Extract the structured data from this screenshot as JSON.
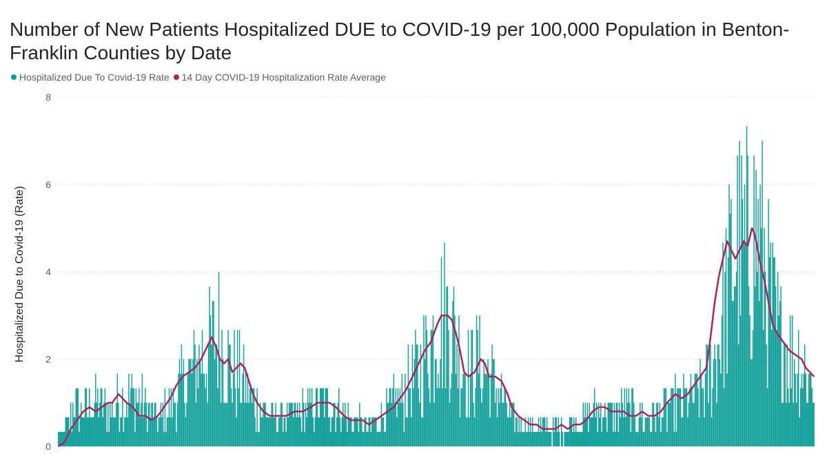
{
  "title": "Number of New Patients Hospitalized DUE to COVID-19 per 100,000 Population in Benton-Franklin Counties by Date",
  "legend": [
    {
      "label": "Hospitalized Due To Covid-19 Rate",
      "color": "#0f9e99"
    },
    {
      "label": "14 Day COVID-19 Hospitalization Rate Average",
      "color": "#a8245f"
    }
  ],
  "chart_data": {
    "type": "bar",
    "title": "Number of New Patients Hospitalized DUE to COVID-19 per 100,000 Population in Benton-Franklin Counties by Date",
    "ylabel": "Hospitalized Due to Covid-19 (Rate)",
    "xlabel": "",
    "ylim": [
      0,
      8
    ],
    "yticks": [
      "0",
      "2",
      "4",
      "6",
      "8"
    ],
    "grid": true,
    "legend_position": "top-left",
    "series": [
      {
        "name": "Hospitalized Due To Covid-19 Rate",
        "type": "bar",
        "color": "#0f9e99",
        "anchors": [
          [
            0,
            0.3
          ],
          [
            5,
            0.3
          ],
          [
            10,
            0.5
          ],
          [
            16,
            1.0
          ],
          [
            22,
            0.8
          ],
          [
            28,
            0.9
          ],
          [
            36,
            1.0
          ],
          [
            44,
            0.9
          ],
          [
            52,
            0.8
          ],
          [
            58,
            1.0
          ],
          [
            64,
            1.1
          ],
          [
            72,
            1.2
          ],
          [
            80,
            1.0
          ],
          [
            88,
            0.8
          ],
          [
            96,
            0.6
          ],
          [
            104,
            0.8
          ],
          [
            112,
            1.1
          ],
          [
            120,
            1.4
          ],
          [
            128,
            1.6
          ],
          [
            136,
            2.0
          ],
          [
            144,
            2.2
          ],
          [
            150,
            2.4
          ],
          [
            156,
            2.6
          ],
          [
            162,
            2.0
          ],
          [
            168,
            1.8
          ],
          [
            174,
            1.7
          ],
          [
            180,
            1.4
          ],
          [
            186,
            1.1
          ],
          [
            192,
            0.9
          ],
          [
            198,
            0.8
          ],
          [
            206,
            0.7
          ],
          [
            214,
            0.7
          ],
          [
            222,
            0.7
          ],
          [
            230,
            0.7
          ],
          [
            238,
            0.8
          ],
          [
            246,
            0.9
          ],
          [
            254,
            1.0
          ],
          [
            262,
            1.0
          ],
          [
            270,
            0.9
          ],
          [
            278,
            0.7
          ],
          [
            286,
            0.6
          ],
          [
            294,
            0.5
          ],
          [
            302,
            0.5
          ],
          [
            310,
            0.6
          ],
          [
            318,
            0.8
          ],
          [
            326,
            1.0
          ],
          [
            334,
            1.2
          ],
          [
            342,
            1.5
          ],
          [
            350,
            1.8
          ],
          [
            356,
            2.2
          ],
          [
            362,
            2.5
          ],
          [
            368,
            2.9
          ],
          [
            374,
            3.0
          ],
          [
            380,
            2.8
          ],
          [
            386,
            2.3
          ],
          [
            392,
            1.8
          ],
          [
            398,
            1.7
          ],
          [
            404,
            2.0
          ],
          [
            410,
            1.8
          ],
          [
            416,
            1.6
          ],
          [
            422,
            1.4
          ],
          [
            428,
            1.2
          ],
          [
            434,
            0.8
          ],
          [
            440,
            0.6
          ],
          [
            448,
            0.5
          ],
          [
            456,
            0.5
          ],
          [
            464,
            0.4
          ],
          [
            472,
            0.4
          ],
          [
            480,
            0.4
          ],
          [
            488,
            0.4
          ],
          [
            496,
            0.5
          ],
          [
            504,
            0.6
          ],
          [
            512,
            0.7
          ],
          [
            520,
            0.8
          ],
          [
            528,
            0.8
          ],
          [
            536,
            0.8
          ],
          [
            544,
            0.8
          ],
          [
            552,
            0.8
          ],
          [
            560,
            0.7
          ],
          [
            568,
            0.7
          ],
          [
            576,
            0.7
          ],
          [
            584,
            0.8
          ],
          [
            592,
            0.9
          ],
          [
            600,
            1.0
          ],
          [
            606,
            1.0
          ],
          [
            612,
            1.1
          ],
          [
            618,
            1.2
          ],
          [
            624,
            1.4
          ],
          [
            630,
            1.7
          ],
          [
            636,
            2.2
          ],
          [
            642,
            3.0
          ],
          [
            648,
            3.8
          ],
          [
            654,
            4.6
          ],
          [
            660,
            4.4
          ],
          [
            666,
            4.5
          ],
          [
            672,
            4.9
          ],
          [
            678,
            4.7
          ],
          [
            684,
            3.8
          ],
          [
            690,
            3.0
          ],
          [
            696,
            2.5
          ],
          [
            702,
            2.3
          ],
          [
            708,
            2.1
          ],
          [
            714,
            2.0
          ],
          [
            720,
            1.8
          ],
          [
            726,
            1.6
          ],
          [
            730,
            1.5
          ]
        ]
      },
      {
        "name": "14 Day COVID-19 Hospitalization Rate Average",
        "type": "line",
        "color": "#a8245f",
        "anchors": [
          [
            0,
            0.0
          ],
          [
            6,
            0.1
          ],
          [
            12,
            0.4
          ],
          [
            18,
            0.6
          ],
          [
            24,
            0.8
          ],
          [
            30,
            0.9
          ],
          [
            36,
            0.8
          ],
          [
            42,
            0.9
          ],
          [
            48,
            1.0
          ],
          [
            52,
            1.0
          ],
          [
            58,
            1.2
          ],
          [
            62,
            1.1
          ],
          [
            66,
            1.0
          ],
          [
            72,
            0.9
          ],
          [
            78,
            0.7
          ],
          [
            84,
            0.7
          ],
          [
            90,
            0.6
          ],
          [
            96,
            0.7
          ],
          [
            102,
            0.9
          ],
          [
            108,
            1.1
          ],
          [
            114,
            1.4
          ],
          [
            120,
            1.6
          ],
          [
            126,
            1.7
          ],
          [
            132,
            1.8
          ],
          [
            138,
            2.0
          ],
          [
            144,
            2.3
          ],
          [
            148,
            2.5
          ],
          [
            152,
            2.3
          ],
          [
            156,
            2.0
          ],
          [
            160,
            1.9
          ],
          [
            164,
            2.0
          ],
          [
            168,
            1.7
          ],
          [
            172,
            1.8
          ],
          [
            176,
            1.9
          ],
          [
            180,
            1.8
          ],
          [
            184,
            1.5
          ],
          [
            188,
            1.2
          ],
          [
            192,
            1.0
          ],
          [
            198,
            0.8
          ],
          [
            204,
            0.7
          ],
          [
            212,
            0.7
          ],
          [
            220,
            0.7
          ],
          [
            228,
            0.8
          ],
          [
            236,
            0.8
          ],
          [
            244,
            0.9
          ],
          [
            250,
            1.0
          ],
          [
            256,
            1.0
          ],
          [
            262,
            1.0
          ],
          [
            268,
            0.9
          ],
          [
            276,
            0.7
          ],
          [
            282,
            0.6
          ],
          [
            288,
            0.6
          ],
          [
            294,
            0.6
          ],
          [
            300,
            0.5
          ],
          [
            306,
            0.6
          ],
          [
            312,
            0.7
          ],
          [
            318,
            0.8
          ],
          [
            324,
            0.9
          ],
          [
            330,
            1.1
          ],
          [
            336,
            1.3
          ],
          [
            342,
            1.6
          ],
          [
            348,
            1.9
          ],
          [
            354,
            2.2
          ],
          [
            360,
            2.4
          ],
          [
            366,
            2.8
          ],
          [
            370,
            3.0
          ],
          [
            376,
            3.0
          ],
          [
            380,
            2.9
          ],
          [
            384,
            2.6
          ],
          [
            388,
            2.2
          ],
          [
            392,
            1.7
          ],
          [
            396,
            1.6
          ],
          [
            402,
            1.7
          ],
          [
            408,
            2.0
          ],
          [
            412,
            1.9
          ],
          [
            416,
            1.6
          ],
          [
            422,
            1.6
          ],
          [
            428,
            1.5
          ],
          [
            434,
            1.2
          ],
          [
            438,
            0.9
          ],
          [
            444,
            0.7
          ],
          [
            450,
            0.6
          ],
          [
            456,
            0.5
          ],
          [
            462,
            0.5
          ],
          [
            468,
            0.4
          ],
          [
            474,
            0.4
          ],
          [
            480,
            0.4
          ],
          [
            486,
            0.5
          ],
          [
            492,
            0.4
          ],
          [
            498,
            0.5
          ],
          [
            504,
            0.5
          ],
          [
            510,
            0.6
          ],
          [
            516,
            0.8
          ],
          [
            522,
            0.9
          ],
          [
            528,
            0.9
          ],
          [
            534,
            0.8
          ],
          [
            540,
            0.8
          ],
          [
            546,
            0.8
          ],
          [
            552,
            0.7
          ],
          [
            558,
            0.7
          ],
          [
            564,
            0.8
          ],
          [
            570,
            0.7
          ],
          [
            576,
            0.7
          ],
          [
            582,
            0.8
          ],
          [
            588,
            1.0
          ],
          [
            592,
            1.1
          ],
          [
            596,
            1.2
          ],
          [
            602,
            1.1
          ],
          [
            608,
            1.2
          ],
          [
            614,
            1.4
          ],
          [
            620,
            1.6
          ],
          [
            626,
            1.8
          ],
          [
            630,
            2.5
          ],
          [
            634,
            3.3
          ],
          [
            638,
            3.9
          ],
          [
            642,
            4.3
          ],
          [
            646,
            4.7
          ],
          [
            650,
            4.5
          ],
          [
            654,
            4.3
          ],
          [
            658,
            4.5
          ],
          [
            662,
            4.7
          ],
          [
            666,
            4.6
          ],
          [
            670,
            5.0
          ],
          [
            672,
            4.9
          ],
          [
            674,
            4.7
          ],
          [
            678,
            4.2
          ],
          [
            682,
            3.8
          ],
          [
            686,
            3.3
          ],
          [
            690,
            2.8
          ],
          [
            694,
            2.6
          ],
          [
            700,
            2.4
          ],
          [
            706,
            2.2
          ],
          [
            712,
            2.1
          ],
          [
            718,
            2.0
          ],
          [
            722,
            1.8
          ],
          [
            726,
            1.7
          ],
          [
            730,
            1.6
          ]
        ]
      }
    ]
  }
}
